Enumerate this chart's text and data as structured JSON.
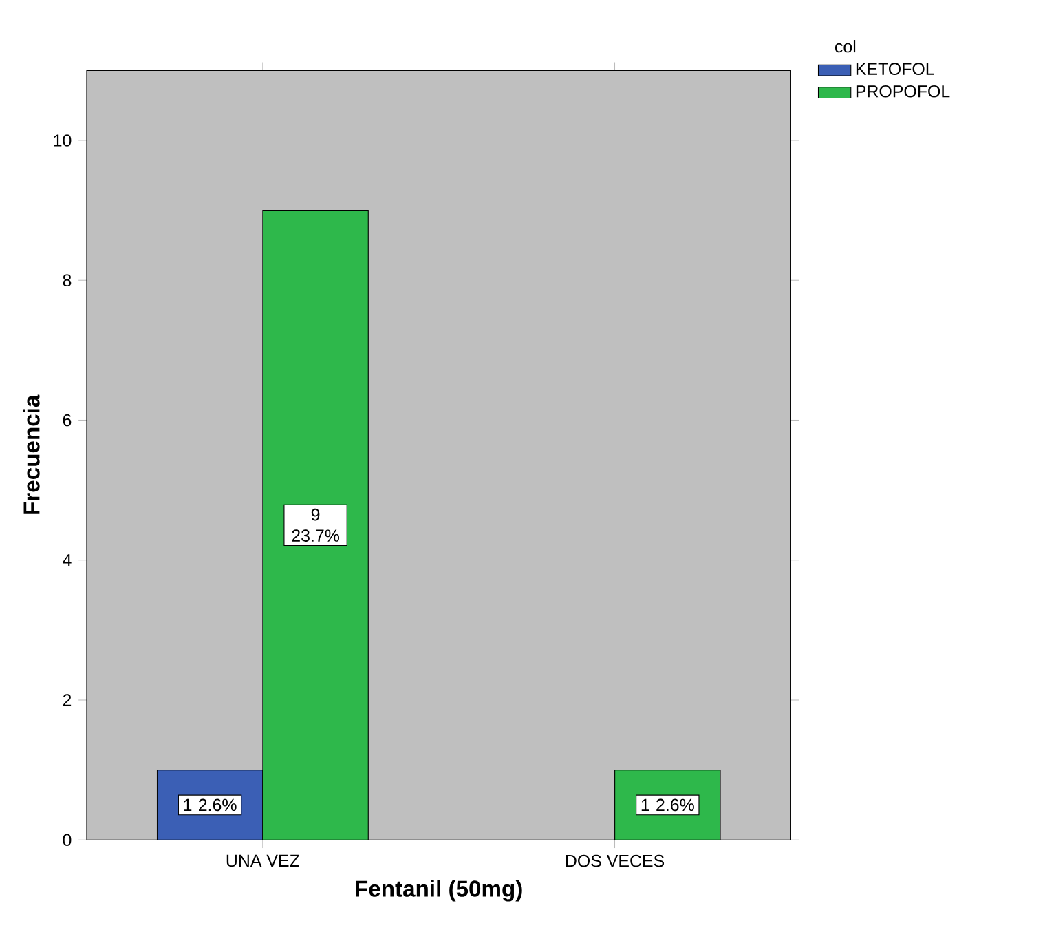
{
  "chart_data": {
    "type": "bar",
    "xlabel": "Fentanil (50mg)",
    "ylabel": "Frecuencia",
    "legend_title": "col",
    "categories": [
      "UNA VEZ",
      "DOS VECES"
    ],
    "series": [
      {
        "name": "KETOFOL",
        "color": "#3b5fb5",
        "values": [
          1,
          null
        ],
        "value_labels": [
          "1 2.6%",
          null
        ]
      },
      {
        "name": "PROPOFOL",
        "color": "#2eb84b",
        "values": [
          9,
          1
        ],
        "value_labels": [
          "9 23.7%",
          "1 2.6%"
        ]
      }
    ],
    "ylim": [
      0,
      11
    ],
    "yticks": [
      0,
      2,
      4,
      6,
      8,
      10
    ],
    "grid": false,
    "legend": "top right"
  }
}
